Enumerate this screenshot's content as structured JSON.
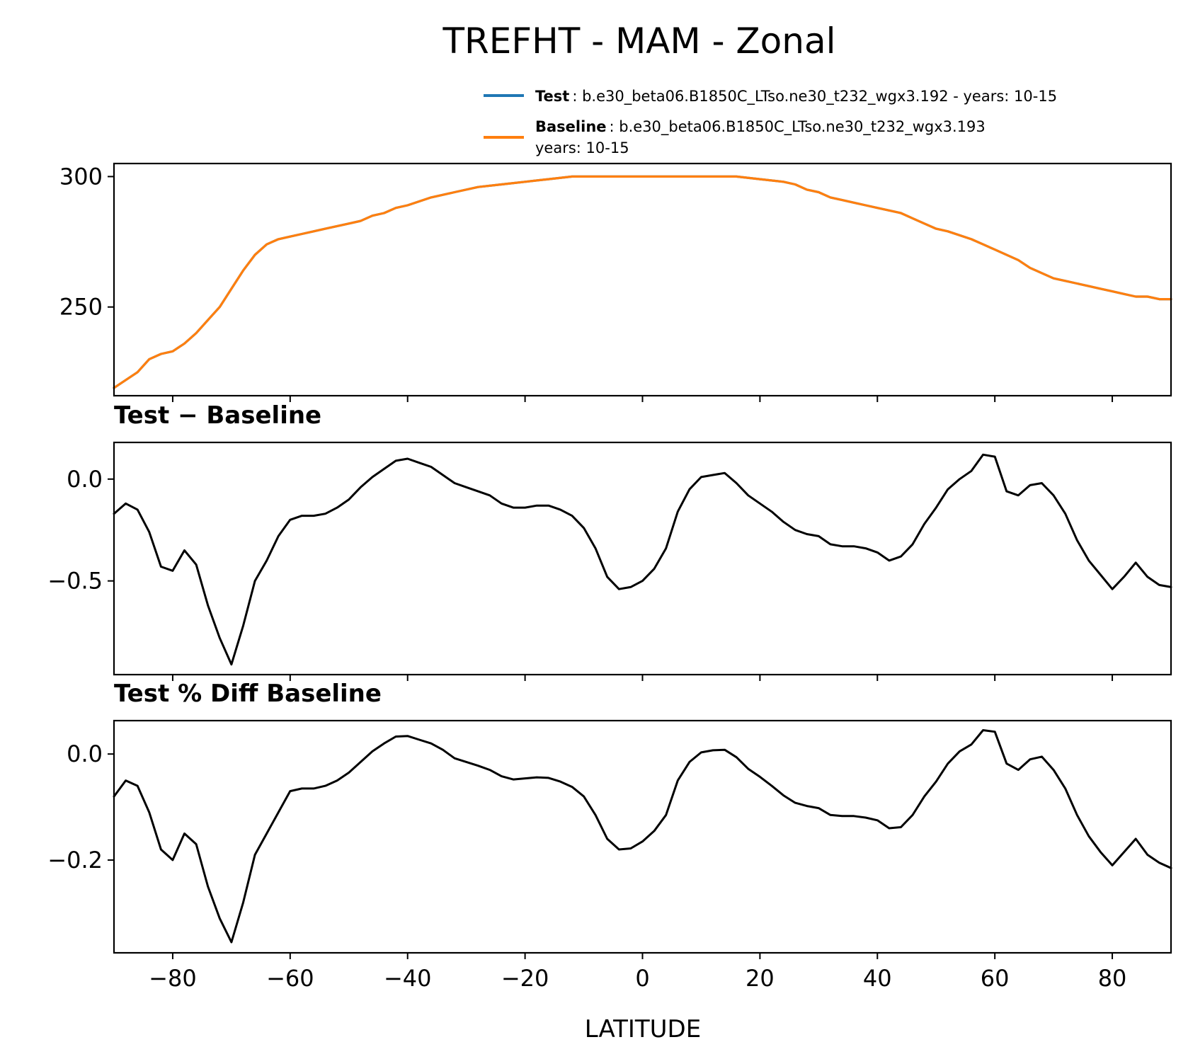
{
  "chart_data": {
    "type": "line",
    "title": "TREFHT - MAM - Zonal",
    "xlabel": "LATITUDE",
    "xlim": [
      -90,
      90
    ],
    "x_ticks": [
      -80,
      -60,
      -40,
      -20,
      0,
      20,
      40,
      60,
      80
    ],
    "x_tick_labels": [
      "−80",
      "−60",
      "−40",
      "−20",
      "0",
      "20",
      "40",
      "60",
      "80"
    ],
    "legend": {
      "location": "upper-right above top panel",
      "entries": [
        {
          "bold": "Test",
          "text": ": b.e30_beta06.B1850C_LTso.ne30_t232_wgx3.192 - years: 10-15",
          "color": "#1f77b4"
        },
        {
          "bold": "Baseline",
          "text": ": b.e30_beta06.B1850C_LTso.ne30_t232_wgx3.193",
          "text2": "years: 10-15",
          "color": "#ff7f0e"
        }
      ]
    },
    "panels": [
      {
        "name": "zonal-mean",
        "title": "",
        "ylim": [
          216,
          305
        ],
        "y_ticks": [
          250,
          300
        ],
        "y_tick_labels": [
          "250",
          "300"
        ],
        "x": [
          -90,
          -86,
          -84,
          -82,
          -80,
          -78,
          -76,
          -74,
          -72,
          -70,
          -68,
          -66,
          -64,
          -62,
          -60,
          -58,
          -56,
          -54,
          -52,
          -50,
          -48,
          -46,
          -44,
          -42,
          -40,
          -36,
          -32,
          -28,
          -24,
          -20,
          -16,
          -12,
          -8,
          -4,
          0,
          4,
          8,
          12,
          16,
          20,
          24,
          26,
          28,
          30,
          32,
          34,
          36,
          38,
          40,
          44,
          46,
          48,
          50,
          52,
          56,
          58,
          60,
          64,
          66,
          68,
          70,
          72,
          74,
          76,
          78,
          80,
          82,
          84,
          86,
          88,
          90
        ],
        "series": [
          {
            "name": "Test",
            "color": "#1f77b4",
            "values": [
              219,
              225,
              230,
              232,
              233,
              236,
              240,
              245,
              250,
              257,
              264,
              270,
              274,
              276,
              277,
              278,
              279,
              280,
              281,
              282,
              283,
              285,
              286,
              288,
              289,
              292,
              294,
              296,
              297,
              298,
              299,
              300,
              300,
              300,
              300,
              300,
              300,
              300,
              300,
              299,
              298,
              297,
              295,
              294,
              292,
              291,
              290,
              289,
              288,
              286,
              284,
              282,
              280,
              279,
              276,
              274,
              272,
              268,
              265,
              263,
              261,
              260,
              259,
              258,
              257,
              256,
              255,
              254,
              254,
              253,
              253
            ]
          },
          {
            "name": "Baseline",
            "color": "#ff7f0e",
            "values": [
              219,
              225,
              230,
              232,
              233,
              236,
              240,
              245,
              250,
              257,
              264,
              270,
              274,
              276,
              277,
              278,
              279,
              280,
              281,
              282,
              283,
              285,
              286,
              288,
              289,
              292,
              294,
              296,
              297,
              298,
              299,
              300,
              300,
              300,
              300,
              300,
              300,
              300,
              300,
              299,
              298,
              297,
              295,
              294,
              292,
              291,
              290,
              289,
              288,
              286,
              284,
              282,
              280,
              279,
              276,
              274,
              272,
              268,
              265,
              263,
              261,
              260,
              259,
              258,
              257,
              256,
              255,
              254,
              254,
              253,
              253
            ]
          }
        ]
      },
      {
        "name": "test-minus-baseline",
        "title": "Test − Baseline",
        "ylim": [
          -0.96,
          0.18
        ],
        "y_ticks": [
          -0.5,
          0.0
        ],
        "y_tick_labels": [
          "−0.5",
          "0.0"
        ],
        "x": [
          -90,
          -88,
          -86,
          -84,
          -82,
          -80,
          -78,
          -76,
          -74,
          -72,
          -70,
          -68,
          -66,
          -64,
          -62,
          -60,
          -58,
          -56,
          -54,
          -52,
          -50,
          -48,
          -46,
          -44,
          -42,
          -40,
          -38,
          -36,
          -34,
          -32,
          -30,
          -28,
          -26,
          -24,
          -22,
          -20,
          -18,
          -16,
          -14,
          -12,
          -10,
          -8,
          -6,
          -4,
          -2,
          0,
          2,
          4,
          6,
          8,
          10,
          12,
          14,
          16,
          18,
          20,
          22,
          24,
          26,
          28,
          30,
          32,
          34,
          36,
          38,
          40,
          42,
          44,
          46,
          48,
          50,
          52,
          54,
          56,
          58,
          60,
          62,
          64,
          66,
          68,
          70,
          72,
          74,
          76,
          78,
          80,
          82,
          84,
          86,
          88,
          90
        ],
        "series": [
          {
            "name": "Test − Baseline",
            "color": "#000000",
            "values": [
              -0.17,
              -0.12,
              -0.15,
              -0.26,
              -0.43,
              -0.45,
              -0.35,
              -0.42,
              -0.62,
              -0.78,
              -0.91,
              -0.72,
              -0.5,
              -0.4,
              -0.28,
              -0.2,
              -0.18,
              -0.18,
              -0.17,
              -0.14,
              -0.1,
              -0.04,
              0.01,
              0.05,
              0.09,
              0.1,
              0.08,
              0.06,
              0.02,
              -0.02,
              -0.04,
              -0.06,
              -0.08,
              -0.12,
              -0.14,
              -0.14,
              -0.13,
              -0.13,
              -0.15,
              -0.18,
              -0.24,
              -0.34,
              -0.48,
              -0.54,
              -0.53,
              -0.5,
              -0.44,
              -0.34,
              -0.16,
              -0.05,
              0.01,
              0.02,
              0.03,
              -0.02,
              -0.08,
              -0.12,
              -0.16,
              -0.21,
              -0.25,
              -0.27,
              -0.28,
              -0.32,
              -0.33,
              -0.33,
              -0.34,
              -0.36,
              -0.4,
              -0.38,
              -0.32,
              -0.22,
              -0.14,
              -0.05,
              0.0,
              0.04,
              0.12,
              0.11,
              -0.06,
              -0.08,
              -0.03,
              -0.02,
              -0.08,
              -0.17,
              -0.3,
              -0.4,
              -0.47,
              -0.54,
              -0.48,
              -0.41,
              -0.48,
              -0.52,
              -0.53
            ]
          }
        ]
      },
      {
        "name": "test-pct-diff-baseline",
        "title": "Test % Diff Baseline",
        "ylim": [
          -0.375,
          0.063
        ],
        "y_ticks": [
          -0.2,
          0.0
        ],
        "y_tick_labels": [
          "−0.2",
          "0.0"
        ],
        "x": [
          -90,
          -88,
          -86,
          -84,
          -82,
          -80,
          -78,
          -76,
          -74,
          -72,
          -70,
          -68,
          -66,
          -64,
          -62,
          -60,
          -58,
          -56,
          -54,
          -52,
          -50,
          -48,
          -46,
          -44,
          -42,
          -40,
          -38,
          -36,
          -34,
          -32,
          -30,
          -28,
          -26,
          -24,
          -22,
          -20,
          -18,
          -16,
          -14,
          -12,
          -10,
          -8,
          -6,
          -4,
          -2,
          0,
          2,
          4,
          6,
          8,
          10,
          12,
          14,
          16,
          18,
          20,
          22,
          24,
          26,
          28,
          30,
          32,
          34,
          36,
          38,
          40,
          42,
          44,
          46,
          48,
          50,
          52,
          54,
          56,
          58,
          60,
          62,
          64,
          66,
          68,
          70,
          72,
          74,
          76,
          78,
          80,
          82,
          84,
          86,
          88,
          90
        ],
        "series": [
          {
            "name": "Test % Diff Baseline",
            "color": "#000000",
            "values": [
              -0.08,
              -0.05,
              -0.06,
              -0.11,
              -0.18,
              -0.2,
              -0.15,
              -0.17,
              -0.25,
              -0.31,
              -0.355,
              -0.28,
              -0.19,
              -0.15,
              -0.11,
              -0.07,
              -0.065,
              -0.065,
              -0.06,
              -0.05,
              -0.035,
              -0.015,
              0.005,
              0.02,
              0.033,
              0.034,
              0.027,
              0.02,
              0.008,
              -0.008,
              -0.015,
              -0.022,
              -0.03,
              -0.042,
              -0.048,
              -0.046,
              -0.044,
              -0.045,
              -0.052,
              -0.062,
              -0.08,
              -0.115,
              -0.16,
              -0.18,
              -0.178,
              -0.165,
              -0.145,
              -0.115,
              -0.05,
              -0.015,
              0.003,
              0.007,
              0.008,
              -0.006,
              -0.028,
              -0.043,
              -0.06,
              -0.078,
              -0.092,
              -0.098,
              -0.102,
              -0.115,
              -0.117,
              -0.117,
              -0.12,
              -0.125,
              -0.14,
              -0.138,
              -0.115,
              -0.08,
              -0.052,
              -0.018,
              0.005,
              0.018,
              0.045,
              0.042,
              -0.018,
              -0.03,
              -0.01,
              -0.005,
              -0.03,
              -0.065,
              -0.115,
              -0.155,
              -0.185,
              -0.21,
              -0.185,
              -0.16,
              -0.19,
              -0.205,
              -0.215
            ]
          }
        ]
      }
    ]
  }
}
